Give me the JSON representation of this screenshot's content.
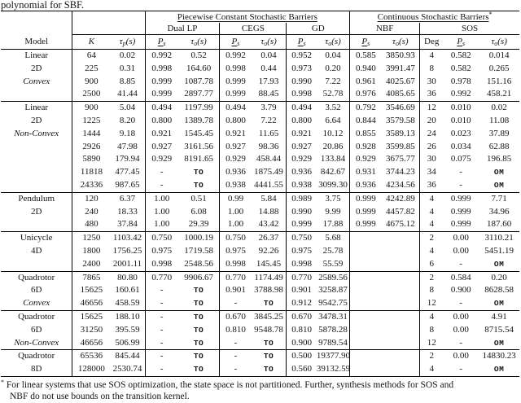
{
  "caption": "polynomial for SBF.",
  "table": {
    "groups": {
      "piecewise": "Piecewise Constant Stochastic Barriers",
      "continuous": "Continuous Stochastic Barriers",
      "continuous_star": "*"
    },
    "methods": [
      "Dual LP",
      "CEGS",
      "GD",
      "NBF",
      "SOS"
    ],
    "labels": {
      "model": "Model",
      "k": "K",
      "tau": "τ",
      "tau_p_sub": "p",
      "tau_o_sub": "o",
      "tau_unit": "(s)",
      "p": "P",
      "p_sub": "s",
      "deg": "Deg"
    },
    "col_widths_pct": [
      13.8,
      7.3,
      6.7,
      6.4,
      8.0,
      6.1,
      6.8,
      5.8,
      6.4,
      6.1,
      7.4,
      4.5,
      6.9,
      7.8
    ],
    "italic_models": [
      "Convex",
      "Non-Convex"
    ],
    "tt_values": [
      "TO",
      "OM"
    ],
    "block_starts": [
      4,
      11,
      14,
      17,
      20,
      23
    ],
    "rows": [
      [
        "Linear",
        "64",
        "0.02",
        "0.992",
        "0.52",
        "0.992",
        "0.04",
        "0.952",
        "0.04",
        "0.585",
        "3850.93",
        "4",
        "0.582",
        "0.014"
      ],
      [
        "2D",
        "225",
        "0.31",
        "0.998",
        "164.60",
        "0.998",
        "0.44",
        "0.973",
        "0.20",
        "0.940",
        "3991.47",
        "8",
        "0.582",
        "0.265"
      ],
      [
        "Convex",
        "900",
        "8.85",
        "0.999",
        "1087.78",
        "0.999",
        "17.93",
        "0.990",
        "7.22",
        "0.961",
        "4025.67",
        "30",
        "0.978",
        "151.16"
      ],
      [
        "",
        "2500",
        "41.44",
        "0.999",
        "2897.77",
        "0.999",
        "88.45",
        "0.998",
        "52.78",
        "0.976",
        "4085.65",
        "36",
        "0.992",
        "458.21"
      ],
      [
        "Linear",
        "900",
        "5.04",
        "0.494",
        "1197.99",
        "0.494",
        "3.79",
        "0.494",
        "3.52",
        "0.792",
        "3546.69",
        "12",
        "0.010",
        "0.02"
      ],
      [
        "2D",
        "1225",
        "8.20",
        "0.800",
        "1389.78",
        "0.800",
        "7.22",
        "0.800",
        "6.64",
        "0.844",
        "3579.58",
        "20",
        "0.010",
        "11.08"
      ],
      [
        "Non-Convex",
        "1444",
        "9.18",
        "0.921",
        "1545.45",
        "0.921",
        "11.65",
        "0.921",
        "10.12",
        "0.855",
        "3589.13",
        "24",
        "0.023",
        "37.89"
      ],
      [
        "",
        "2926",
        "47.98",
        "0.927",
        "3161.56",
        "0.927",
        "98.36",
        "0.927",
        "20.86",
        "0.928",
        "3599.85",
        "26",
        "0.034",
        "62.88"
      ],
      [
        "",
        "5890",
        "179.94",
        "0.929",
        "8191.65",
        "0.929",
        "458.44",
        "0.929",
        "133.84",
        "0.929",
        "3675.77",
        "30",
        "0.075",
        "196.85"
      ],
      [
        "",
        "11818",
        "477.45",
        "-",
        "TO",
        "0.936",
        "1875.49",
        "0.936",
        "842.67",
        "0.931",
        "3744.23",
        "34",
        "-",
        "OM"
      ],
      [
        "",
        "24336",
        "987.65",
        "-",
        "TO",
        "0.938",
        "4441.55",
        "0.938",
        "3099.30",
        "0.936",
        "4234.56",
        "36",
        "-",
        "OM"
      ],
      [
        "Pendulum",
        "120",
        "6.37",
        "1.00",
        "0.51",
        "0.99",
        "5.84",
        "0.989",
        "3.75",
        "0.999",
        "4242.89",
        "4",
        "0.999",
        "7.71"
      ],
      [
        "2D",
        "240",
        "18.33",
        "1.00",
        "6.08",
        "1.00",
        "14.88",
        "0.990",
        "9.99",
        "0.999",
        "4457.82",
        "4",
        "0.999",
        "34.96"
      ],
      [
        "",
        "480",
        "37.84",
        "1.00",
        "29.39",
        "1.00",
        "43.42",
        "0.999",
        "17.88",
        "0.999",
        "4675.12",
        "4",
        "0.999",
        "187.60"
      ],
      [
        "Unicycle",
        "1250",
        "1103.42",
        "0.750",
        "1000.19",
        "0.750",
        "26.37",
        "0.750",
        "5.68",
        "",
        "",
        "2",
        "0.00",
        "3110.21"
      ],
      [
        "4D",
        "1800",
        "1756.25",
        "0.975",
        "1719.58",
        "0.975",
        "92.26",
        "0.975",
        "25.78",
        "",
        "",
        "4",
        "0.00",
        "5451.19"
      ],
      [
        "",
        "2400",
        "2001.11",
        "0.998",
        "2548.56",
        "0.998",
        "145.45",
        "0.998",
        "55.59",
        "",
        "",
        "6",
        "-",
        "OM"
      ],
      [
        "Quadrotor",
        "7865",
        "80.80",
        "0.770",
        "9906.67",
        "0.770",
        "1174.49",
        "0.770",
        "2589.56",
        "",
        "",
        "2",
        "0.584",
        "0.20"
      ],
      [
        "6D",
        "15625",
        "160.61",
        "-",
        "TO",
        "0.901",
        "3788.98",
        "0.901",
        "3258.87",
        "",
        "",
        "8",
        "0.900",
        "8628.58"
      ],
      [
        "Convex",
        "46656",
        "458.59",
        "-",
        "TO",
        "-",
        "TO",
        "0.912",
        "9542.75",
        "",
        "",
        "12",
        "-",
        "OM"
      ],
      [
        "Quadrotor",
        "15625",
        "188.10",
        "-",
        "TO",
        "0.670",
        "3845.25",
        "0.670",
        "3478.31",
        "",
        "",
        "4",
        "0.00",
        "4.91"
      ],
      [
        "6D",
        "31250",
        "395.59",
        "-",
        "TO",
        "0.810",
        "9548.78",
        "0.810",
        "5878.28",
        "",
        "",
        "8",
        "0.00",
        "8715.54"
      ],
      [
        "Non-Convex",
        "46656",
        "506.99",
        "-",
        "TO",
        "-",
        "TO",
        "0.900",
        "9789.54",
        "",
        "",
        "12",
        "-",
        "OM"
      ],
      [
        "Quadrotor",
        "65536",
        "845.44",
        "-",
        "TO",
        "-",
        "TO",
        "0.500",
        "19377.90",
        "",
        "",
        "2",
        "0.00",
        "14830.23"
      ],
      [
        "8D",
        "128000",
        "2530.74",
        "-",
        "TO",
        "-",
        "TO",
        "0.560",
        "39132.59",
        "",
        "",
        "4",
        "-",
        "OM"
      ]
    ]
  },
  "footnote": {
    "star": "*",
    "line1": "For linear systems that use SOS optimization, the state space is not partitioned. Further, synthesis methods for SOS and",
    "line2": "NBF do not use bounds on the transition kernel."
  },
  "colors": {
    "rule": "#000000",
    "text": "#141414",
    "background": "#ffffff"
  }
}
